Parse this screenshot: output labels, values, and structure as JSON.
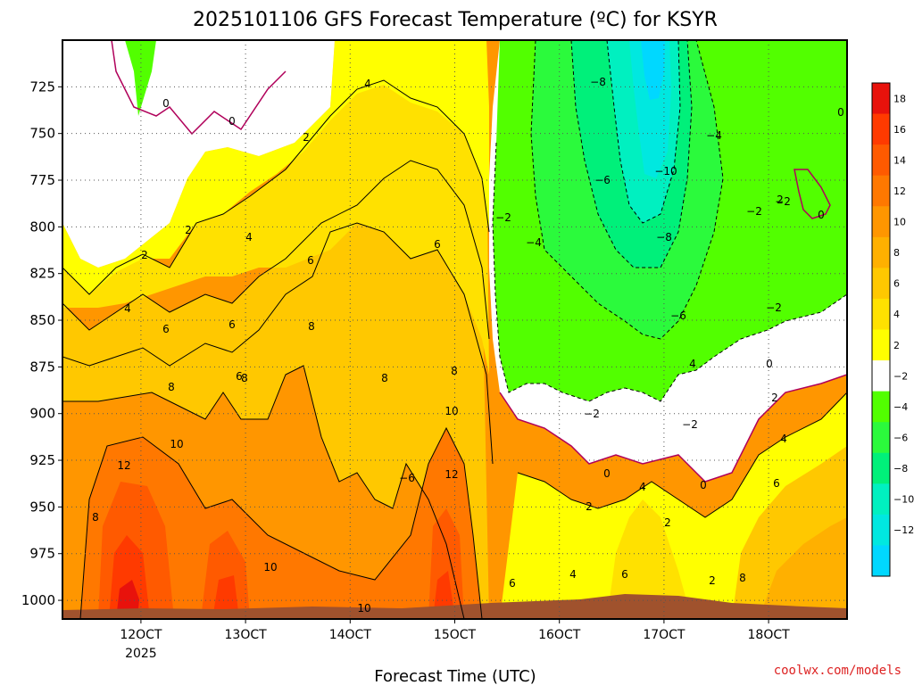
{
  "title": "2025101106 GFS Forecast Temperature (ºC) for KSYR",
  "credit": "coolwx.com/models",
  "chart_data": {
    "type": "heatmap",
    "title": "2025101106 GFS Forecast Temperature (ºC) for KSYR",
    "xlabel": "Forecast Time (UTC)",
    "ylabel": "",
    "x_ticks": [
      {
        "label": "12OCT",
        "sub": "2025"
      },
      {
        "label": "13OCT",
        "sub": ""
      },
      {
        "label": "14OCT",
        "sub": ""
      },
      {
        "label": "15OCT",
        "sub": ""
      },
      {
        "label": "16OCT",
        "sub": ""
      },
      {
        "label": "17OCT",
        "sub": ""
      },
      {
        "label": "18OCT",
        "sub": ""
      }
    ],
    "y_ticks": [
      "725",
      "750",
      "775",
      "800",
      "825",
      "850",
      "875",
      "900",
      "925",
      "950",
      "975",
      "1000"
    ],
    "xlim": [
      "2025-10-11T06",
      "2025-10-18T18"
    ],
    "ylim": [
      700,
      1010
    ],
    "y_reversed": true,
    "grid": true,
    "colorbar": {
      "labels": [
        "18",
        "16",
        "14",
        "12",
        "10",
        "8",
        "6",
        "4",
        "2",
        "−2",
        "−4",
        "−6",
        "−8",
        "−10",
        "−12"
      ],
      "colors": [
        "#e8120c",
        "#ff3a00",
        "#ff5a00",
        "#ff7800",
        "#ff9600",
        "#ffb000",
        "#ffc800",
        "#ffe100",
        "#ffff00",
        "#ffffff",
        "#52ff00",
        "#2bfa3c",
        "#00f07a",
        "#00f0c0",
        "#00e8e0",
        "#00d8ff"
      ]
    },
    "pressure_levels": [
      700,
      725,
      750,
      775,
      800,
      825,
      850,
      875,
      900,
      925,
      950,
      975,
      1000
    ],
    "contour_labels": [
      "0",
      "0",
      "0",
      "0",
      "0",
      "0",
      "0",
      "2",
      "2",
      "2",
      "2",
      "2",
      "2",
      "2",
      "2",
      "4",
      "4",
      "4",
      "4",
      "4",
      "4",
      "4",
      "6",
      "6",
      "6",
      "6",
      "6",
      "6",
      "6",
      "6",
      "8",
      "8",
      "8",
      "8",
      "8",
      "8",
      "8",
      "10",
      "10",
      "10",
      "10",
      "12",
      "12",
      "−2",
      "−2",
      "−2",
      "−2",
      "−2",
      "−2",
      "−4",
      "−4",
      "−6",
      "−6",
      "−6",
      "−8",
      "−8",
      "−10"
    ]
  }
}
